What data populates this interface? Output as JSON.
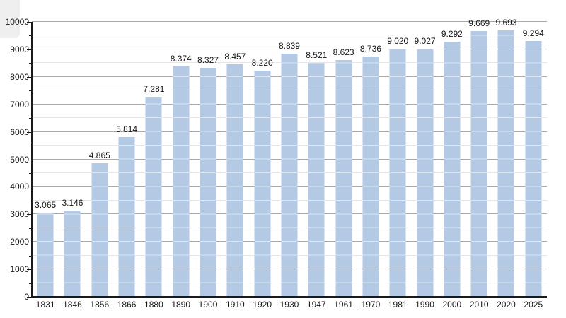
{
  "chart_data": {
    "type": "bar",
    "title": "",
    "xlabel": "",
    "ylabel": "",
    "categories": [
      "1831",
      "1846",
      "1856",
      "1866",
      "1880",
      "1890",
      "1900",
      "1910",
      "1920",
      "1930",
      "1947",
      "1961",
      "1970",
      "1981",
      "1990",
      "2000",
      "2010",
      "2020",
      "2025"
    ],
    "values": [
      3065,
      3146,
      4865,
      5814,
      7281,
      8374,
      8327,
      8457,
      8220,
      8839,
      8521,
      8623,
      8736,
      9020,
      9027,
      9292,
      9669,
      9693,
      9294
    ],
    "value_labels": [
      "3.065",
      "3.146",
      "4.865",
      "5.814",
      "7.281",
      "8.374",
      "8.327",
      "8.457",
      "8.220",
      "8.839",
      "8.521",
      "8.623",
      "8.736",
      "9.020",
      "9.027",
      "9.292",
      "9.669",
      "9.693",
      "9.294"
    ],
    "ylim": [
      0,
      10000
    ],
    "y_tick_labels": [
      "0",
      "1000",
      "2000",
      "3000",
      "4000",
      "5000",
      "6000",
      "7000",
      "8000",
      "9000",
      "10000"
    ],
    "y_major_step": 1000,
    "y_minor_step": 500,
    "grid": "horizontal major and minor gridlines, drawn behind bars",
    "legend": "none",
    "colors": {
      "bar": "#b3c9e4",
      "major_gridline": "#a9a9a9",
      "minor_gridline": "#e6e6e6",
      "axis": "#1a1a1a",
      "text": "#161616",
      "background": "#ffffff",
      "corner_artifact": "#efefef"
    }
  }
}
